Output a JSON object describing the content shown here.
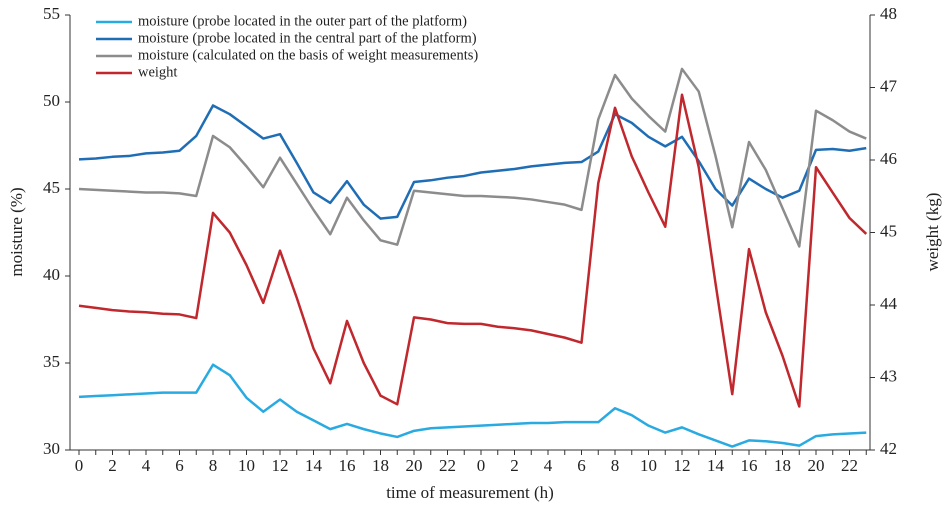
{
  "chart_data": {
    "type": "line",
    "x_label": "time of measurement (h)",
    "y_label": "moisture (%)",
    "y2_label": "weight  (kg)",
    "categories": [
      "0",
      null,
      "2",
      null,
      "4",
      null,
      "6",
      null,
      "8",
      null,
      "10",
      null,
      "12",
      null,
      "14",
      null,
      "16",
      null,
      "18",
      null,
      "20",
      null,
      "22",
      null,
      "0",
      null,
      "2",
      null,
      "4",
      null,
      "6",
      null,
      "8",
      null,
      "10",
      null,
      "12",
      null,
      "14",
      null,
      "16",
      null,
      "18",
      null,
      "20",
      null,
      "22",
      null
    ],
    "ylim": [
      30,
      55
    ],
    "yticks": [
      30,
      35,
      40,
      45,
      50,
      55
    ],
    "y2lim": [
      42,
      48
    ],
    "y2ticks": [
      42,
      43,
      44,
      45,
      46,
      47,
      48
    ],
    "legend": "top-left",
    "series": [
      {
        "name": "moisture (probe located in the outer part of the platform)",
        "color": "#29aae1",
        "values": [
          33.05,
          33.1,
          33.15,
          33.2,
          33.25,
          33.3,
          33.3,
          33.3,
          34.9,
          34.3,
          33.0,
          32.2,
          32.9,
          32.2,
          31.7,
          31.2,
          31.5,
          31.2,
          30.95,
          30.75,
          31.1,
          31.25,
          31.3,
          31.35,
          31.4,
          31.45,
          31.5,
          31.55,
          31.55,
          31.6,
          31.6,
          31.6,
          32.4,
          32.0,
          31.4,
          31.0,
          31.3,
          30.9,
          30.55,
          30.2,
          30.55,
          30.5,
          30.4,
          30.25,
          30.8,
          30.9,
          30.95,
          31.0
        ]
      },
      {
        "name": "moisture (probe located in the central part of the platform)",
        "color": "#1f6eb5",
        "values": [
          46.7,
          46.75,
          46.85,
          46.9,
          47.05,
          47.1,
          47.2,
          48.05,
          49.8,
          49.3,
          48.6,
          47.9,
          48.15,
          46.5,
          44.8,
          44.2,
          45.45,
          44.1,
          43.3,
          43.4,
          45.4,
          45.5,
          45.65,
          45.75,
          45.95,
          46.05,
          46.15,
          46.3,
          46.4,
          46.5,
          46.55,
          47.15,
          49.3,
          48.8,
          48.0,
          47.45,
          48.0,
          46.6,
          45.0,
          44.05,
          45.6,
          45.0,
          44.5,
          44.9,
          47.25,
          47.3,
          47.2,
          47.35
        ]
      },
      {
        "name": "moisture (calculated on the basis of weight measurements)",
        "color": "#8c8c8c",
        "values": [
          45.0,
          44.95,
          44.9,
          44.85,
          44.8,
          44.8,
          44.75,
          44.6,
          48.05,
          47.4,
          46.3,
          45.1,
          46.8,
          45.3,
          43.8,
          42.4,
          44.5,
          43.2,
          42.05,
          41.8,
          44.9,
          44.8,
          44.7,
          44.6,
          44.6,
          44.55,
          44.5,
          44.4,
          44.25,
          44.1,
          43.8,
          49.0,
          51.55,
          50.2,
          49.2,
          48.3,
          51.9,
          50.6,
          46.9,
          42.8,
          47.7,
          46.1,
          43.9,
          41.7,
          49.5,
          48.95,
          48.3,
          47.9
        ]
      },
      {
        "name": "weight",
        "color": "#c0282d",
        "axis": "y2",
        "values": [
          43.99,
          43.96,
          43.93,
          43.91,
          43.9,
          43.88,
          43.87,
          43.82,
          45.27,
          45.0,
          44.55,
          44.03,
          44.75,
          44.1,
          43.4,
          42.92,
          43.78,
          43.2,
          42.75,
          42.63,
          43.83,
          43.8,
          43.75,
          43.74,
          43.74,
          43.7,
          43.68,
          43.65,
          43.6,
          43.55,
          43.48,
          45.68,
          46.72,
          46.05,
          45.55,
          45.08,
          46.9,
          45.9,
          44.3,
          42.77,
          44.77,
          43.9,
          43.3,
          42.6,
          45.9,
          45.55,
          45.2,
          44.98
        ]
      }
    ]
  }
}
